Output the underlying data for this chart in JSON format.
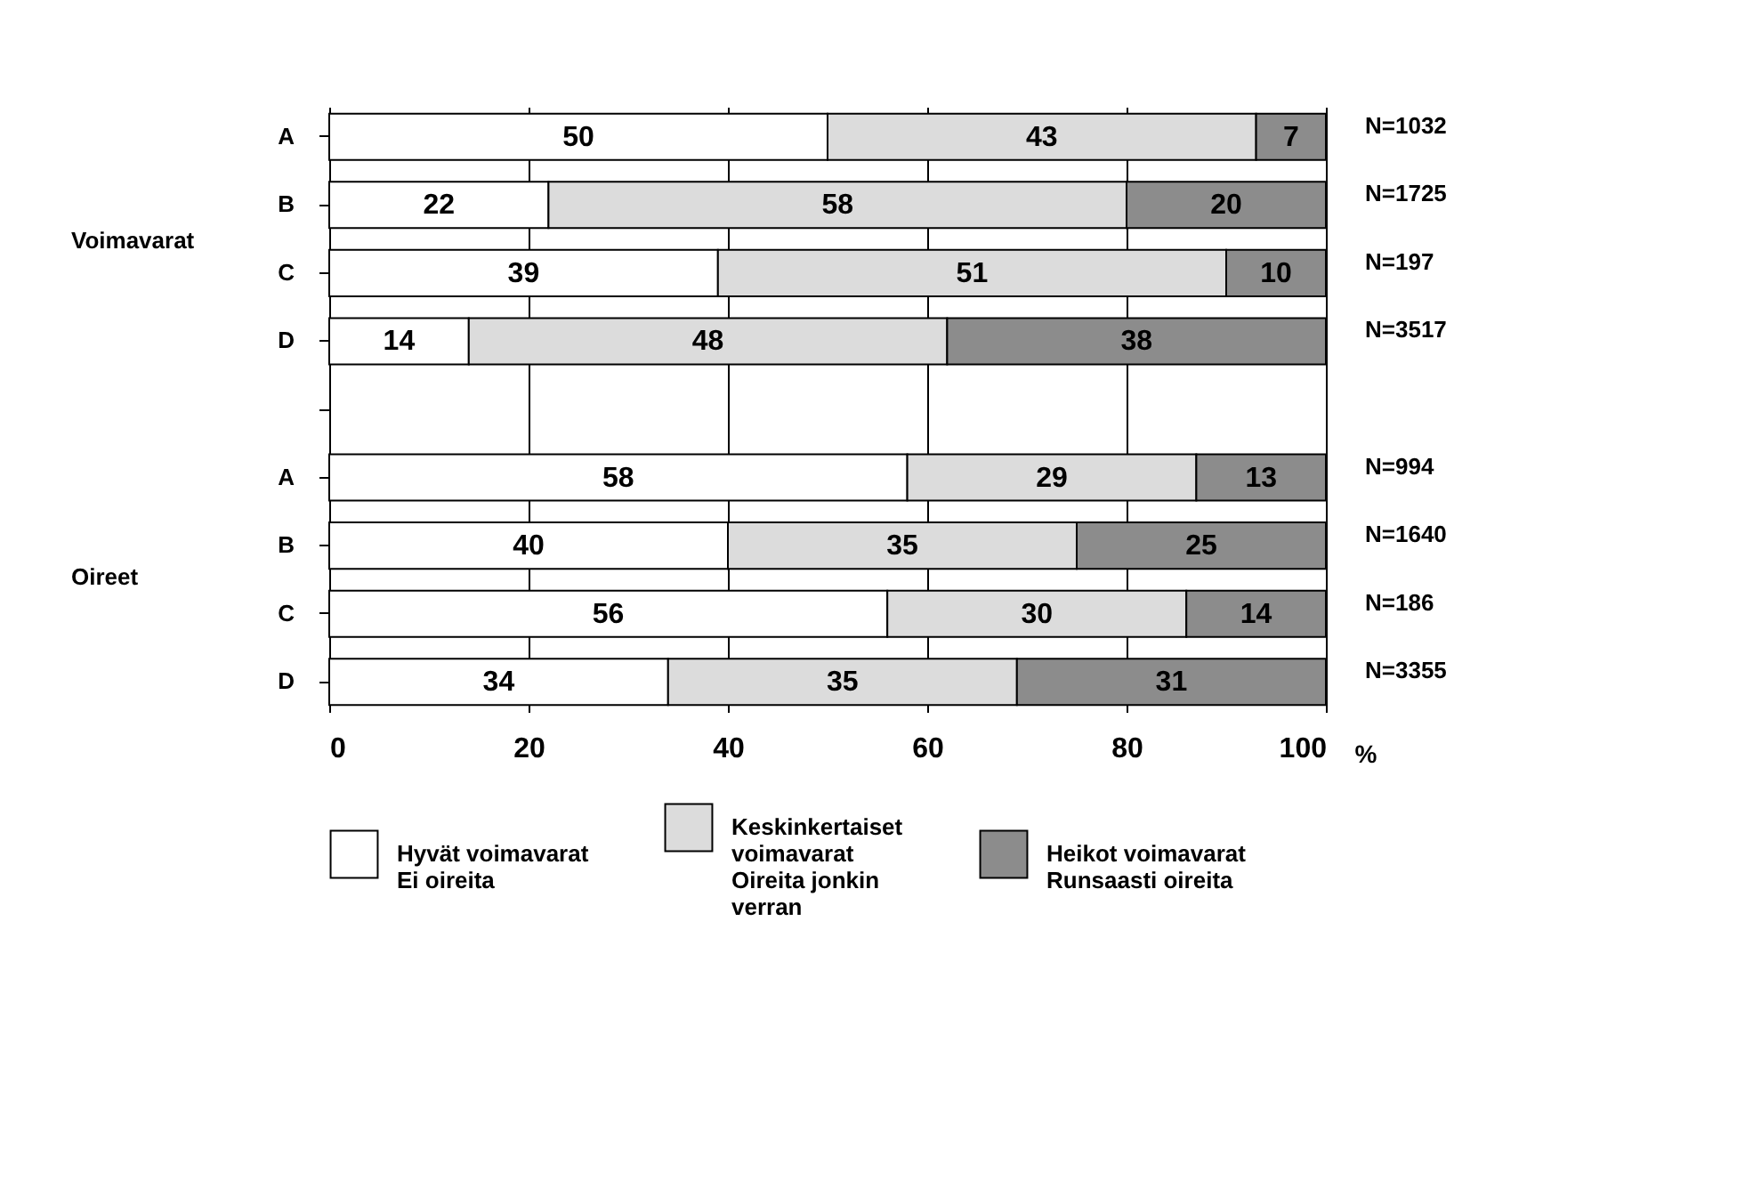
{
  "chart_data": {
    "type": "bar",
    "orientation": "horizontal",
    "stacked": true,
    "categories": [
      "A",
      "B",
      "C",
      "D",
      null,
      "A",
      "B",
      "C",
      "D"
    ],
    "series": [
      {
        "name": "Hyvät voimavarat\nEi oireita",
        "color": "#ffffff",
        "values": [
          50,
          22,
          39,
          14,
          null,
          58,
          40,
          56,
          34
        ]
      },
      {
        "name": "Keskinkertaiset\nvoimavarat\nOireita jonkin\nverran",
        "color": "#dcdcdc",
        "values": [
          43,
          58,
          51,
          48,
          null,
          29,
          35,
          30,
          35
        ]
      },
      {
        "name": "Heikot voimavarat\nRunsaasti oireita",
        "color": "#8c8c8c",
        "values": [
          7,
          20,
          10,
          38,
          null,
          13,
          25,
          14,
          31
        ]
      }
    ],
    "xlabel": "%",
    "xlim": [
      0,
      100
    ],
    "xticks": [
      0,
      20,
      40,
      60,
      80,
      100
    ],
    "grid": "x",
    "legend": "bottom",
    "data_labels": true,
    "annotations": [
      "N=1032",
      "N=1725",
      "N=197",
      "N=3517",
      "N=994",
      "N=1640",
      "N=186",
      "N=3355",
      "Voimavarat",
      "Oireet"
    ]
  }
}
